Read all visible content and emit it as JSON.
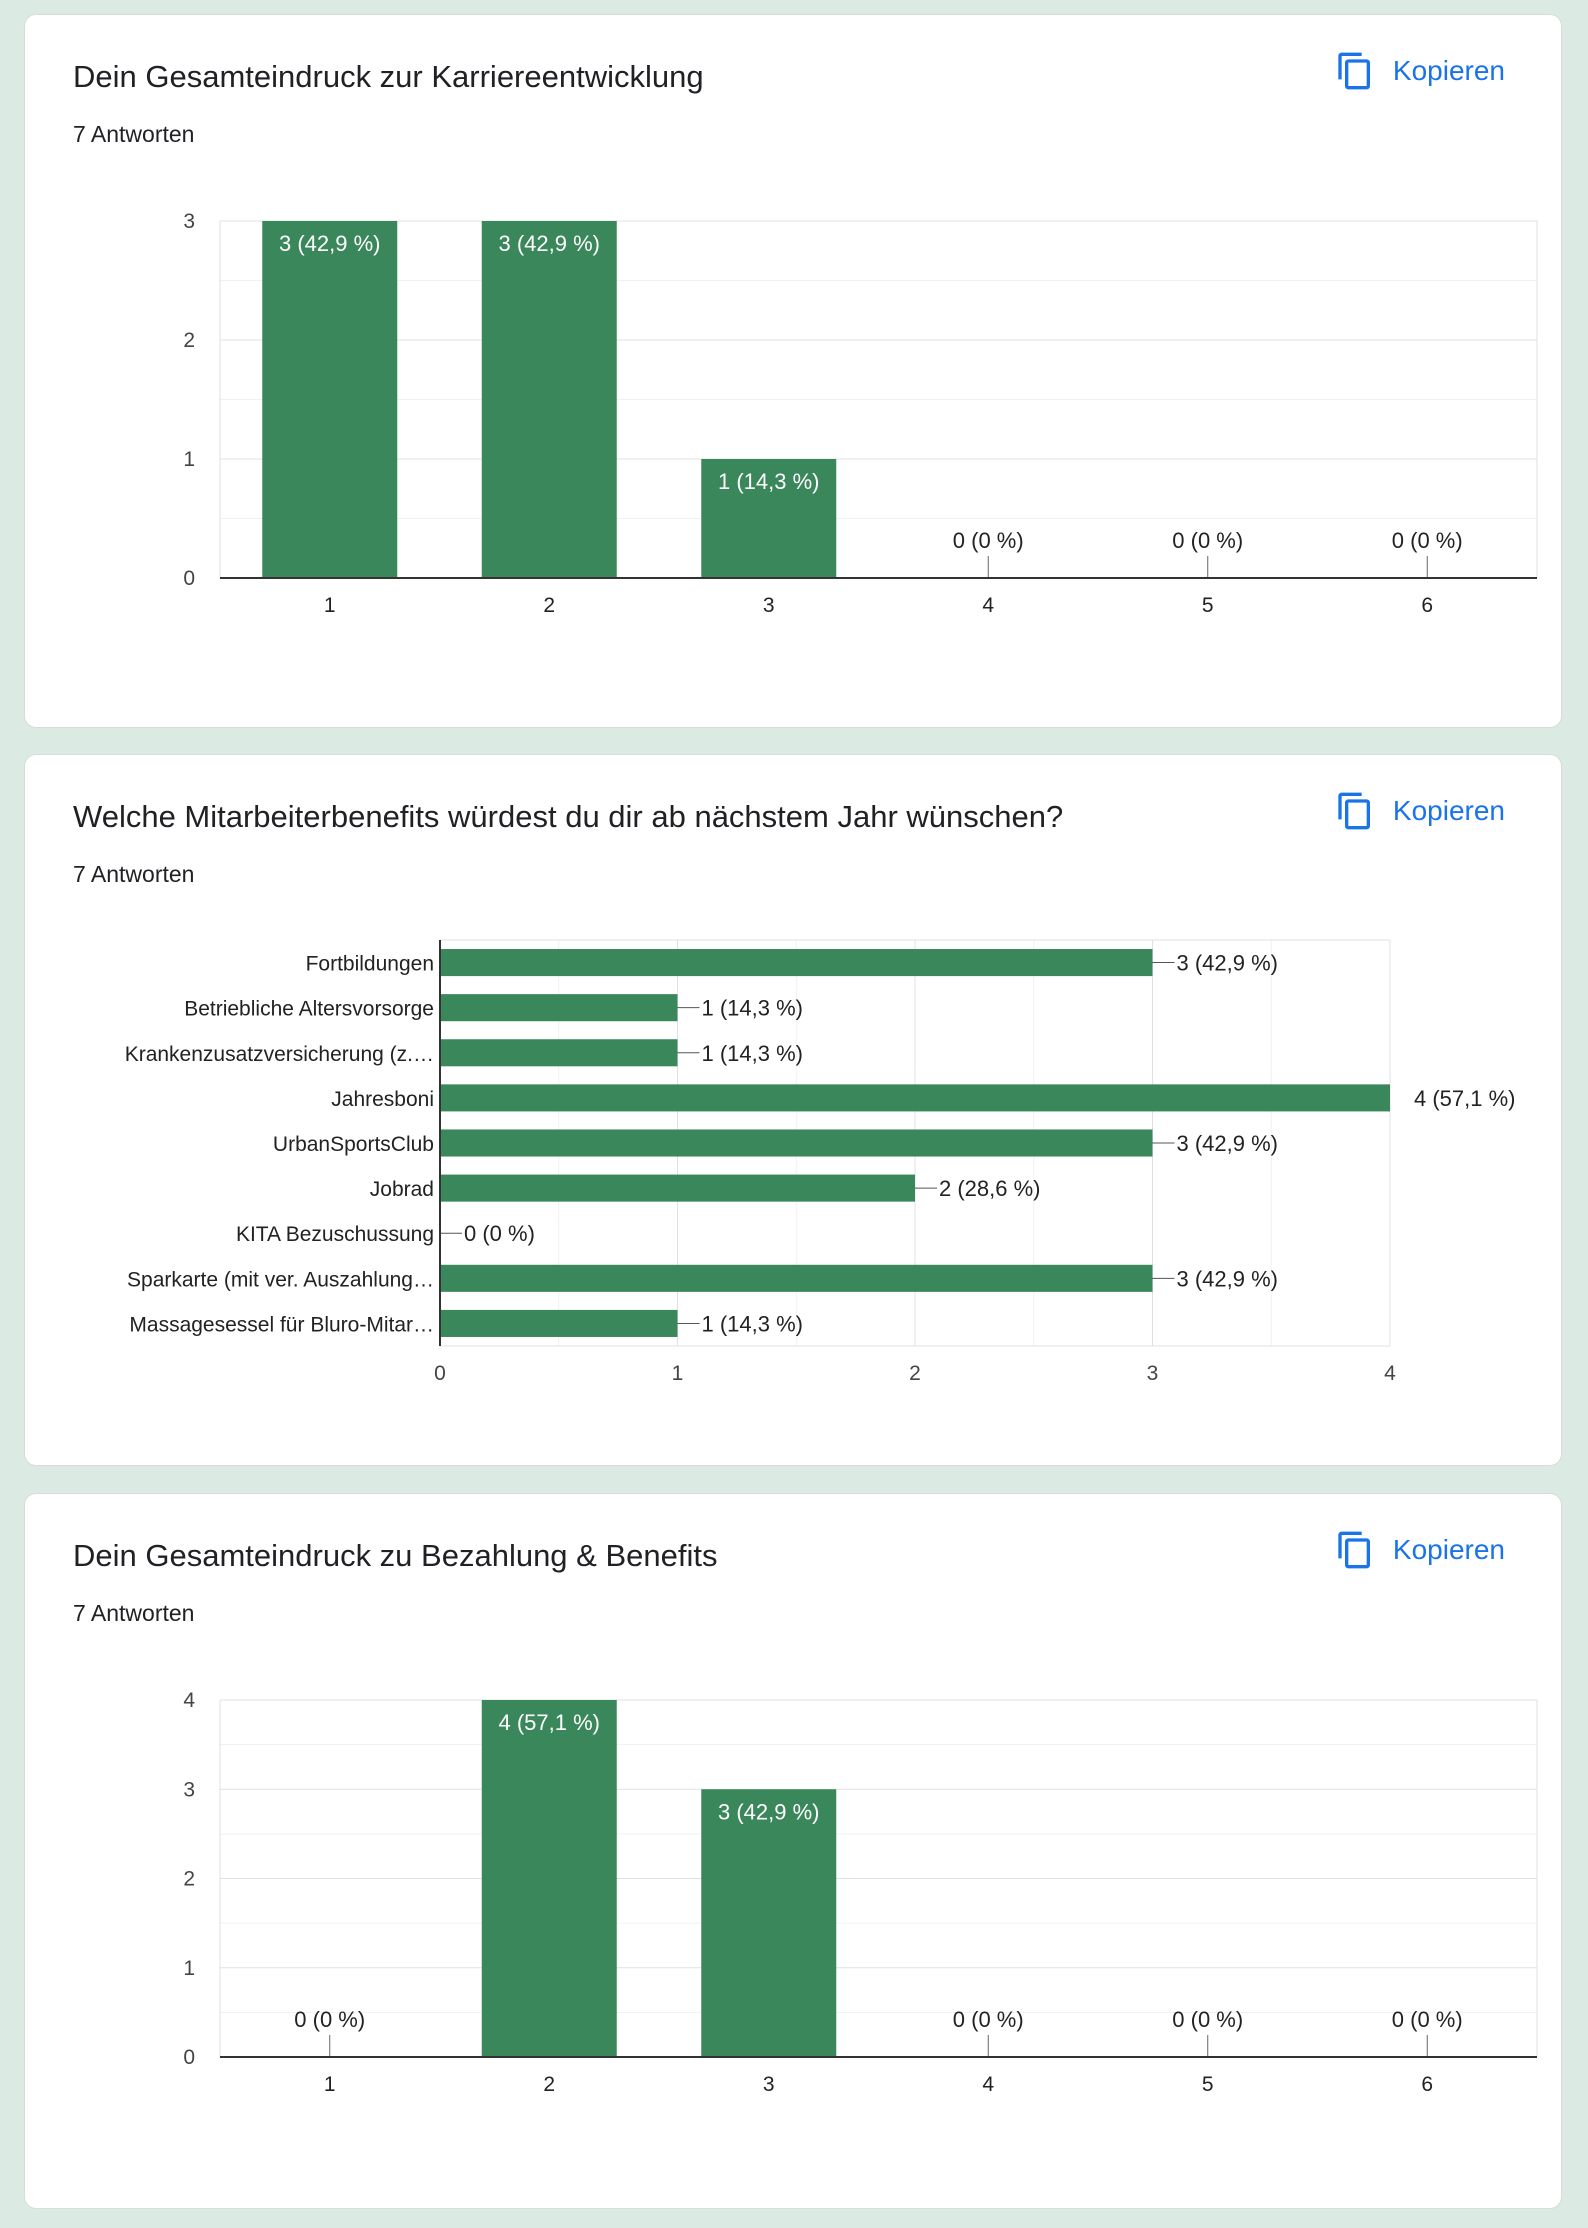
{
  "copy_label": "Kopieren",
  "accent": "#1a73e8",
  "bar_color": "#3a875b",
  "cards": [
    {
      "title": "Dein Gesamteindruck zur Karriereentwicklung",
      "count": "7 Antworten",
      "chart_data": {
        "type": "bar",
        "categories": [
          "1",
          "2",
          "3",
          "4",
          "5",
          "6"
        ],
        "values": [
          3,
          3,
          1,
          0,
          0,
          0
        ],
        "data_labels": [
          "3 (42,9 %)",
          "3 (42,9 %)",
          "1 (14,3 %)",
          "0 (0 %)",
          "0 (0 %)",
          "0 (0 %)"
        ],
        "ylim": [
          0,
          3
        ],
        "yticks": [
          0,
          1,
          2,
          3
        ],
        "grid": true
      }
    },
    {
      "title": "Welche Mitarbeiterbenefits würdest du dir ab nächstem Jahr wünschen?",
      "count": "7 Antworten",
      "chart_data": {
        "type": "bar",
        "orientation": "horizontal",
        "categories": [
          "Fortbildungen",
          "Betriebliche Altersvorsorge",
          "Krankenzusatzversicherung (z.…",
          "Jahresboni",
          "UrbanSportsClub",
          "Jobrad",
          "KITA Bezuschussung",
          "Sparkarte (mit ver. Auszahlung…",
          "Massagesessel für Bluro-Mitar…"
        ],
        "values": [
          3,
          1,
          1,
          4,
          3,
          2,
          0,
          3,
          1
        ],
        "data_labels": [
          "3 (42,9 %)",
          "1 (14,3 %)",
          "1 (14,3 %)",
          "4 (57,1 %)",
          "3 (42,9 %)",
          "2 (28,6 %)",
          "0 (0 %)",
          "3 (42,9 %)",
          "1 (14,3 %)"
        ],
        "xlim": [
          0,
          4
        ],
        "xticks": [
          0,
          1,
          2,
          3,
          4
        ],
        "grid": true
      }
    },
    {
      "title": "Dein Gesamteindruck zu Bezahlung & Benefits",
      "count": "7 Antworten",
      "chart_data": {
        "type": "bar",
        "categories": [
          "1",
          "2",
          "3",
          "4",
          "5",
          "6"
        ],
        "values": [
          0,
          4,
          3,
          0,
          0,
          0
        ],
        "data_labels": [
          "0 (0 %)",
          "4 (57,1 %)",
          "3 (42,9 %)",
          "0 (0 %)",
          "0 (0 %)",
          "0 (0 %)"
        ],
        "ylim": [
          0,
          4
        ],
        "yticks": [
          0,
          1,
          2,
          3,
          4
        ],
        "grid": true
      }
    }
  ]
}
